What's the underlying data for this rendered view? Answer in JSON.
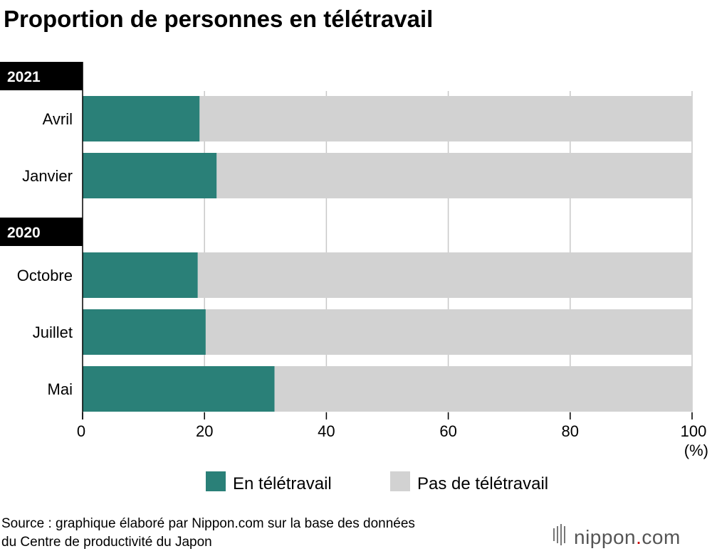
{
  "title": "Proportion de personnes en télétravail",
  "groups": [
    {
      "year": "2021",
      "rows": [
        0,
        1
      ]
    },
    {
      "year": "2020",
      "rows": [
        2,
        3,
        4
      ]
    }
  ],
  "unit_label": "(%)",
  "source": {
    "line1": "Source : graphique élaboré par Nippon.com sur la base des données",
    "line2": "du Centre de productivité du Japon"
  },
  "brand": {
    "name": "nippon",
    "suffix": "com",
    "dot": "."
  },
  "colors": {
    "teletravail": "#2a8078",
    "pas_teletravail": "#d2d2d2",
    "grid": "#c8c8c8",
    "year_band": "#000000",
    "brand_dot": "#cc0000"
  },
  "chart_data": {
    "type": "bar",
    "orientation": "horizontal",
    "stacked": true,
    "title": "Proportion de personnes en télétravail",
    "categories": [
      "Avril",
      "Janvier",
      "Octobre",
      "Juillet",
      "Mai"
    ],
    "category_years": [
      "2021",
      "2021",
      "2020",
      "2020",
      "2020"
    ],
    "series": [
      {
        "name": "En télétravail",
        "values": [
          19.2,
          22.0,
          18.9,
          20.2,
          31.5
        ]
      },
      {
        "name": "Pas de télétravail",
        "values": [
          80.8,
          78.0,
          81.1,
          79.8,
          68.5
        ]
      }
    ],
    "xlim": [
      0,
      100
    ],
    "xticks": [
      "0",
      "20",
      "40",
      "60",
      "80",
      "100"
    ],
    "xticks_values": [
      0,
      20,
      40,
      60,
      80,
      100
    ],
    "xlabel": "(%)",
    "grid": true,
    "legend": [
      "En télétravail",
      "Pas de télétravail"
    ],
    "legend_position": "bottom"
  }
}
